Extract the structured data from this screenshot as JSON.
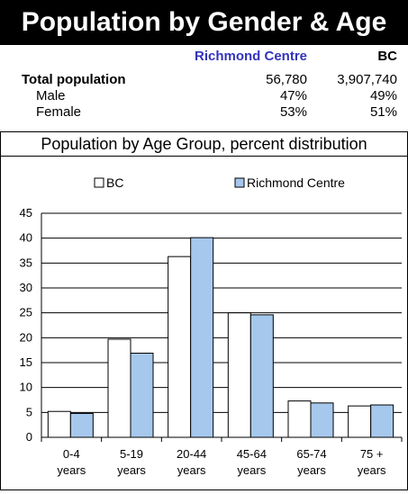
{
  "header": {
    "title": "Population by Gender & Age"
  },
  "stats": {
    "col_richmond": "Richmond Centre",
    "col_bc": "BC",
    "rows": [
      {
        "label": "Total population",
        "richmond": "56,780",
        "bc": "3,907,740"
      },
      {
        "label": "Male",
        "richmond": "47%",
        "bc": "49%"
      },
      {
        "label": "Female",
        "richmond": "53%",
        "bc": "51%"
      }
    ]
  },
  "subtitle": "Population by Age Group, percent distribution",
  "colors": {
    "bc": "#ffffff",
    "richmond": "#a6c8ec",
    "title_bg": "#000000",
    "richmond_label": "#3333bb"
  },
  "chart_data": {
    "type": "bar",
    "categories": [
      "0-4 years",
      "5-19 years",
      "20-44 years",
      "45-64 years",
      "65-74 years",
      "75 + years"
    ],
    "category_lines": [
      [
        "0-4",
        "years"
      ],
      [
        "5-19",
        "years"
      ],
      [
        "20-44",
        "years"
      ],
      [
        "45-64",
        "years"
      ],
      [
        "65-74",
        "years"
      ],
      [
        "75 +",
        "years"
      ]
    ],
    "series": [
      {
        "name": "BC",
        "color": "#ffffff",
        "values": [
          5.2,
          19.7,
          36.3,
          25.0,
          7.3,
          6.3
        ]
      },
      {
        "name": "Richmond Centre",
        "color": "#a6c8ec",
        "values": [
          4.8,
          16.9,
          40.1,
          24.6,
          6.9,
          6.5
        ]
      }
    ],
    "ylim": [
      0,
      45
    ],
    "yticks": [
      0,
      5,
      10,
      15,
      20,
      25,
      30,
      35,
      40,
      45
    ],
    "grid": true,
    "legend": "top"
  }
}
